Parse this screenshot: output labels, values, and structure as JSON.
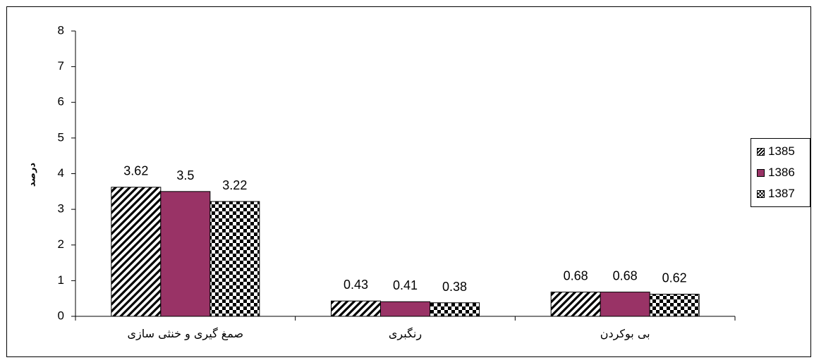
{
  "chart_data": {
    "type": "bar",
    "categories": [
      "صمغ گیری و خنثی سازی",
      "رنگبری",
      "بی بوکردن"
    ],
    "series": [
      {
        "name": "1385",
        "values": [
          3.62,
          0.43,
          0.68
        ],
        "pattern": "diagonal-hatch",
        "color": "#000000"
      },
      {
        "name": "1386",
        "values": [
          3.5,
          0.41,
          0.68
        ],
        "pattern": "solid",
        "color": "#993366"
      },
      {
        "name": "1387",
        "values": [
          3.22,
          0.38,
          0.62
        ],
        "pattern": "checkerboard",
        "color": "#000000"
      }
    ],
    "data_labels": [
      [
        "3.62",
        "3.5",
        "3.22"
      ],
      [
        "0.43",
        "0.41",
        "0.38"
      ],
      [
        "0.68",
        "0.68",
        "0.62"
      ]
    ],
    "ylabel": "درصد",
    "ylim": [
      0,
      8
    ],
    "yticks": [
      "0",
      "1",
      "2",
      "3",
      "4",
      "5",
      "6",
      "7",
      "8"
    ],
    "grid": false,
    "legend_position": "right"
  }
}
